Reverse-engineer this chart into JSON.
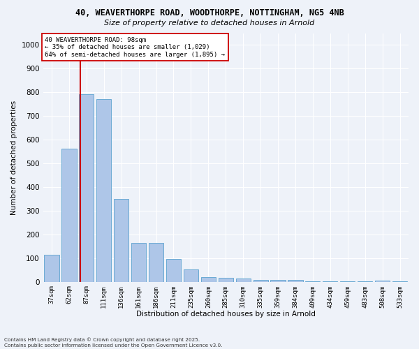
{
  "title_line1": "40, WEAVERTHORPE ROAD, WOODTHORPE, NOTTINGHAM, NG5 4NB",
  "title_line2": "Size of property relative to detached houses in Arnold",
  "xlabel": "Distribution of detached houses by size in Arnold",
  "ylabel": "Number of detached properties",
  "categories": [
    "37sqm",
    "62sqm",
    "87sqm",
    "111sqm",
    "136sqm",
    "161sqm",
    "186sqm",
    "211sqm",
    "235sqm",
    "260sqm",
    "285sqm",
    "310sqm",
    "335sqm",
    "359sqm",
    "384sqm",
    "409sqm",
    "434sqm",
    "459sqm",
    "483sqm",
    "508sqm",
    "533sqm"
  ],
  "values": [
    113,
    563,
    793,
    770,
    350,
    165,
    165,
    97,
    52,
    20,
    18,
    14,
    7,
    7,
    7,
    3,
    1,
    1,
    1,
    4,
    1
  ],
  "bar_color": "#aec6e8",
  "bar_edge_color": "#6aaad4",
  "vline_color": "#cc0000",
  "annotation_text": "40 WEAVERTHORPE ROAD: 98sqm\n← 35% of detached houses are smaller (1,029)\n64% of semi-detached houses are larger (1,895) →",
  "annotation_box_color": "#ffffff",
  "annotation_box_edge": "#cc0000",
  "background_color": "#eef2f9",
  "grid_color": "#ffffff",
  "footer_line1": "Contains HM Land Registry data © Crown copyright and database right 2025.",
  "footer_line2": "Contains public sector information licensed under the Open Government Licence v3.0.",
  "ylim": [
    0,
    1050
  ],
  "yticks": [
    0,
    100,
    200,
    300,
    400,
    500,
    600,
    700,
    800,
    900,
    1000
  ]
}
